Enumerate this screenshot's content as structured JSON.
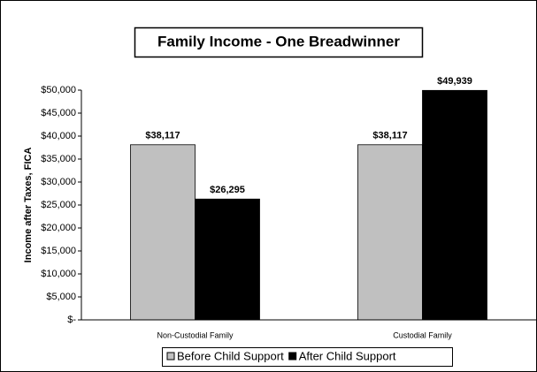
{
  "chart_data": {
    "type": "bar",
    "title": "Family Income - One Breadwinner",
    "y_label": "Income after Taxes, FICA",
    "categories": [
      "Non-Custodial Family",
      "Custodial Family"
    ],
    "series": [
      {
        "name": "Before Child Support",
        "color": "#c0c0c0",
        "values": [
          38117,
          38117
        ],
        "value_labels": [
          "$38,117",
          "$38,117"
        ]
      },
      {
        "name": "After Child Support",
        "color": "#000000",
        "values": [
          26295,
          49939
        ],
        "value_labels": [
          "$26,295",
          "$49,939"
        ]
      }
    ],
    "ylim": [
      0,
      50000
    ],
    "yticks": [
      {
        "value": 0,
        "label": "$-"
      },
      {
        "value": 5000,
        "label": "$5,000"
      },
      {
        "value": 10000,
        "label": "$10,000"
      },
      {
        "value": 15000,
        "label": "$15,000"
      },
      {
        "value": 20000,
        "label": "$20,000"
      },
      {
        "value": 25000,
        "label": "$25,000"
      },
      {
        "value": 30000,
        "label": "$30,000"
      },
      {
        "value": 35000,
        "label": "$35,000"
      },
      {
        "value": 40000,
        "label": "$40,000"
      },
      {
        "value": 45000,
        "label": "$45,000"
      },
      {
        "value": 50000,
        "label": "$50,000"
      }
    ],
    "grid": false,
    "legend": "bottom"
  }
}
